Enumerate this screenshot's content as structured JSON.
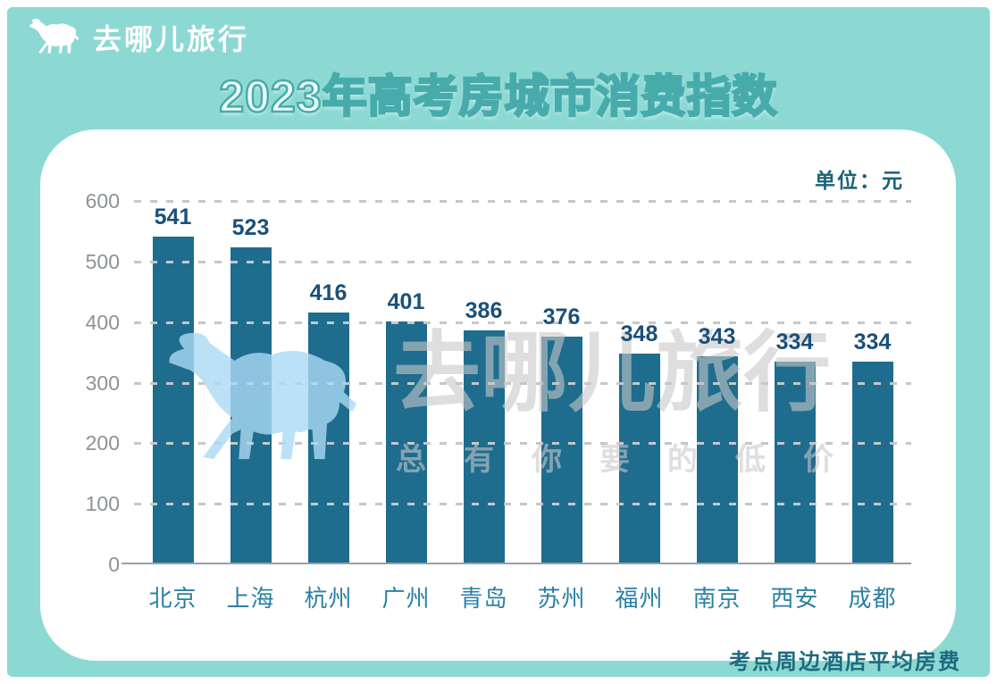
{
  "header": {
    "brand": "去哪儿旅行",
    "title": "2023年高考房城市消费指数"
  },
  "chart": {
    "unit_label": "单位：元"
  },
  "chart_data": {
    "type": "bar",
    "title": "2023年高考房城市消费指数",
    "categories": [
      "北京",
      "上海",
      "杭州",
      "广州",
      "青岛",
      "苏州",
      "福州",
      "南京",
      "西安",
      "成都"
    ],
    "values": [
      541,
      523,
      416,
      401,
      386,
      376,
      348,
      343,
      334,
      334
    ],
    "unit": "元",
    "xlabel": "",
    "ylabel": "",
    "ylim": [
      0,
      600
    ],
    "yticks": [
      0,
      100,
      200,
      300,
      400,
      500,
      600
    ],
    "grid": "horizontal-dashed",
    "legend": "none",
    "bar_color": "#1e6d8e"
  },
  "watermark": {
    "brand_text": "去哪儿旅行",
    "tagline": "总有你要的低价"
  },
  "footer": {
    "note": "考点周边酒店平均房费"
  },
  "colors": {
    "background": "#8cd9d3",
    "card": "#ffffff",
    "bar": "#1e6d8e",
    "value_label": "#1a507a",
    "city_label": "#2b80a4",
    "ytick_label": "#8d9296",
    "title_fill": "#eefcf8",
    "title_stroke": "#47abac",
    "unit_text": "#186278",
    "footnote_text": "#1d6b7e"
  }
}
